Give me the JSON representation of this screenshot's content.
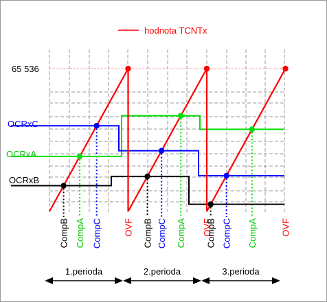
{
  "legend": {
    "label": "hodnota TCNTx",
    "color": "#ff0000"
  },
  "ylabels": {
    "max": "65 536",
    "ocrc": "OCRxC",
    "ocra": "OCRxA",
    "ocrb": "OCRxB"
  },
  "events": [
    "CompB",
    "CompA",
    "CompC",
    "OVF"
  ],
  "periods": [
    "1.perioda",
    "2.perioda",
    "3.perioda"
  ],
  "colors": {
    "counter": "#ff0000",
    "ocrc": "#0000ff",
    "ocra": "#00e000",
    "ocrb": "#000000",
    "grid": "#9a9a9a",
    "top_line": "#ff9a9a"
  },
  "chart_data": {
    "type": "line",
    "counter_max": 65536,
    "period_count": 3,
    "series": [
      {
        "name": "hodnota TCNTx",
        "shape": "sawtooth",
        "periods": 3
      },
      {
        "name": "OCRxC",
        "levels_per_period": [
          0.6,
          0.425,
          0.25
        ]
      },
      {
        "name": "OCRxA",
        "levels_per_period": [
          0.385,
          0.67,
          0.575
        ]
      },
      {
        "name": "OCRxB",
        "levels_per_period": [
          0.18,
          0.245,
          0.05
        ]
      }
    ]
  }
}
